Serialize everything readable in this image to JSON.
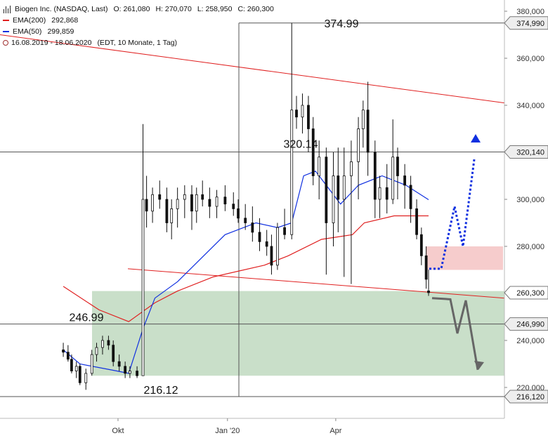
{
  "legend": {
    "title": "Biogen Inc. (NASDAQ, Last)",
    "open": "O: 261,080",
    "high": "H: 270,070",
    "low": "L: 258,950",
    "close": "C: 260,300",
    "ema200_label": "EMA(200)",
    "ema200_value": "292,868",
    "ema50_label": "EMA(50)",
    "ema50_value": "299,859",
    "range_label": "16.08.2019 - 18.06.2020",
    "range_info": "(EDT, 10 Monate, 1 Tag)",
    "colors": {
      "ema200": "#e02020",
      "ema50": "#1030e0"
    }
  },
  "chart_data": {
    "type": "candlestick",
    "x_tick_labels": [
      "Okt",
      "Jan '20",
      "Apr"
    ],
    "y_ticks": [
      220000,
      240000,
      260000,
      280000,
      300000,
      320000,
      340000,
      360000,
      380000
    ],
    "y_tick_labels": [
      "220,000",
      "240,000",
      "260,000",
      "280,000",
      "300,000",
      "320,000",
      "340,000",
      "360,000",
      "380,000"
    ],
    "ylim": [
      213000,
      381000
    ],
    "x_range": [
      "2019-08-16",
      "2020-06-18"
    ],
    "level_labels": [
      {
        "value": 374990,
        "label": "374,990"
      },
      {
        "value": 320140,
        "label": "320,140"
      },
      {
        "value": 260300,
        "label": "260,300"
      },
      {
        "value": 246990,
        "label": "246,990"
      },
      {
        "value": 216120,
        "label": "216,120"
      }
    ],
    "annotations": [
      {
        "text": "374.99",
        "value": 374.99
      },
      {
        "text": "320.14",
        "value": 320.14
      },
      {
        "text": "246.99",
        "value": 246.99
      },
      {
        "text": "216.12",
        "value": 216.12
      }
    ],
    "horizontal_lines": [
      374990,
      320140,
      246990,
      216120
    ],
    "zones": [
      {
        "name": "support-zone",
        "from": 225000,
        "to": 261000,
        "color": "#c9dfc9"
      },
      {
        "name": "resistance-zone",
        "from": 270000,
        "to": 280000,
        "color": "#f6cccc"
      }
    ],
    "series": [
      {
        "name": "EMA(200)",
        "color": "#e02020",
        "points": [
          [
            "2019-08-16",
            263000
          ],
          [
            "2019-09-15",
            253000
          ],
          [
            "2019-10-10",
            248000
          ],
          [
            "2019-11-01",
            256000
          ],
          [
            "2019-11-20",
            261000
          ],
          [
            "2019-12-20",
            267000
          ],
          [
            "2020-02-01",
            272000
          ],
          [
            "2020-02-21",
            276000
          ],
          [
            "2020-03-20",
            283000
          ],
          [
            "2020-04-15",
            285000
          ],
          [
            "2020-04-25",
            290000
          ],
          [
            "2020-05-20",
            293000
          ],
          [
            "2020-06-18",
            293000
          ]
        ]
      },
      {
        "name": "EMA(50)",
        "color": "#1030e0",
        "points": [
          [
            "2019-08-16",
            236000
          ],
          [
            "2019-08-30",
            230000
          ],
          [
            "2019-09-30",
            227000
          ],
          [
            "2019-10-10",
            226000
          ],
          [
            "2019-10-22",
            245000
          ],
          [
            "2019-11-01",
            258000
          ],
          [
            "2019-11-20",
            265000
          ],
          [
            "2019-12-10",
            275000
          ],
          [
            "2019-12-30",
            285000
          ],
          [
            "2020-01-25",
            290000
          ],
          [
            "2020-02-12",
            288000
          ],
          [
            "2020-02-24",
            290000
          ],
          [
            "2020-03-05",
            310000
          ],
          [
            "2020-03-15",
            312000
          ],
          [
            "2020-04-05",
            298000
          ],
          [
            "2020-04-20",
            306000
          ],
          [
            "2020-05-10",
            310000
          ],
          [
            "2020-05-30",
            306000
          ],
          [
            "2020-06-18",
            299859
          ]
        ]
      }
    ],
    "candles": [
      [
        "2019-08-16",
        236000,
        239000,
        233000,
        235000
      ],
      [
        "2019-08-20",
        235000,
        238000,
        231000,
        232000
      ],
      [
        "2019-08-23",
        232000,
        234000,
        226000,
        227000
      ],
      [
        "2019-08-27",
        227000,
        231000,
        224000,
        229000
      ],
      [
        "2019-08-30",
        229000,
        230000,
        221000,
        222000
      ],
      [
        "2019-09-04",
        222000,
        228000,
        219000,
        226000
      ],
      [
        "2019-09-09",
        226000,
        236000,
        225000,
        234000
      ],
      [
        "2019-09-13",
        234000,
        239000,
        231000,
        237000
      ],
      [
        "2019-09-18",
        237000,
        242000,
        234000,
        240000
      ],
      [
        "2019-09-23",
        240000,
        242000,
        236000,
        238000
      ],
      [
        "2019-09-27",
        238000,
        240000,
        229000,
        231000
      ],
      [
        "2019-10-02",
        231000,
        234000,
        227000,
        229000
      ],
      [
        "2019-10-07",
        229000,
        231000,
        224000,
        226000
      ],
      [
        "2019-10-11",
        226000,
        229000,
        224000,
        227000
      ],
      [
        "2019-10-17",
        227000,
        229000,
        224000,
        225000
      ],
      [
        "2019-10-22",
        225000,
        332000,
        225000,
        300000
      ],
      [
        "2019-10-25",
        300000,
        310000,
        288000,
        295000
      ],
      [
        "2019-10-30",
        295000,
        305000,
        290000,
        302000
      ],
      [
        "2019-11-05",
        302000,
        308000,
        296000,
        300000
      ],
      [
        "2019-11-11",
        300000,
        305000,
        286000,
        290000
      ],
      [
        "2019-11-15",
        290000,
        300000,
        283000,
        296000
      ],
      [
        "2019-11-20",
        296000,
        305000,
        288000,
        300000
      ],
      [
        "2019-11-26",
        300000,
        306000,
        292000,
        302000
      ],
      [
        "2019-12-02",
        302000,
        306000,
        287000,
        295000
      ],
      [
        "2019-12-06",
        295000,
        305000,
        290000,
        302000
      ],
      [
        "2019-12-11",
        302000,
        308000,
        297000,
        300000
      ],
      [
        "2019-12-17",
        300000,
        305000,
        292000,
        297000
      ],
      [
        "2019-12-23",
        297000,
        304000,
        292000,
        301000
      ],
      [
        "2019-12-30",
        301000,
        306000,
        295000,
        298000
      ],
      [
        "2020-01-06",
        298000,
        303000,
        293000,
        296000
      ],
      [
        "2020-01-10",
        296000,
        300000,
        290000,
        292000
      ],
      [
        "2020-01-16",
        292000,
        298000,
        287000,
        290000
      ],
      [
        "2020-01-22",
        290000,
        297000,
        282000,
        286000
      ],
      [
        "2020-01-28",
        286000,
        292000,
        278000,
        282000
      ],
      [
        "2020-02-03",
        282000,
        287000,
        276000,
        280000
      ],
      [
        "2020-02-07",
        280000,
        285000,
        268000,
        272000
      ],
      [
        "2020-02-12",
        272000,
        290000,
        270000,
        288000
      ],
      [
        "2020-02-18",
        288000,
        296000,
        283000,
        285000
      ],
      [
        "2020-02-24",
        285000,
        375000,
        283000,
        338000
      ],
      [
        "2020-02-28",
        338000,
        344000,
        330000,
        335000
      ],
      [
        "2020-03-04",
        335000,
        345000,
        328000,
        340000
      ],
      [
        "2020-03-09",
        340000,
        344000,
        320000,
        330000
      ],
      [
        "2020-03-13",
        330000,
        335000,
        306000,
        310000
      ],
      [
        "2020-03-18",
        310000,
        325000,
        300000,
        318000
      ],
      [
        "2020-03-24",
        318000,
        322000,
        268000,
        290000
      ],
      [
        "2020-03-30",
        290000,
        320000,
        280000,
        310000
      ],
      [
        "2020-04-03",
        310000,
        322000,
        286000,
        300000
      ],
      [
        "2020-04-08",
        300000,
        322000,
        267000,
        310000
      ],
      [
        "2020-04-14",
        310000,
        325000,
        264000,
        316000
      ],
      [
        "2020-04-20",
        316000,
        335000,
        300000,
        330000
      ],
      [
        "2020-04-24",
        330000,
        342000,
        322000,
        338000
      ],
      [
        "2020-04-28",
        338000,
        350000,
        310000,
        320000
      ],
      [
        "2020-05-04",
        320000,
        325000,
        292000,
        300000
      ],
      [
        "2020-05-08",
        300000,
        310000,
        292000,
        305000
      ],
      [
        "2020-05-14",
        305000,
        315000,
        294000,
        300000
      ],
      [
        "2020-05-19",
        300000,
        334000,
        298000,
        318000
      ],
      [
        "2020-05-23",
        318000,
        322000,
        300000,
        310000
      ],
      [
        "2020-05-29",
        310000,
        315000,
        296000,
        306000
      ],
      [
        "2020-06-03",
        306000,
        310000,
        290000,
        296000
      ],
      [
        "2020-06-08",
        296000,
        300000,
        283000,
        285000
      ],
      [
        "2020-06-12",
        285000,
        288000,
        272000,
        276000
      ],
      [
        "2020-06-16",
        276000,
        280000,
        262000,
        266000
      ],
      [
        "2020-06-18",
        261080,
        270070,
        258950,
        260300
      ]
    ]
  }
}
